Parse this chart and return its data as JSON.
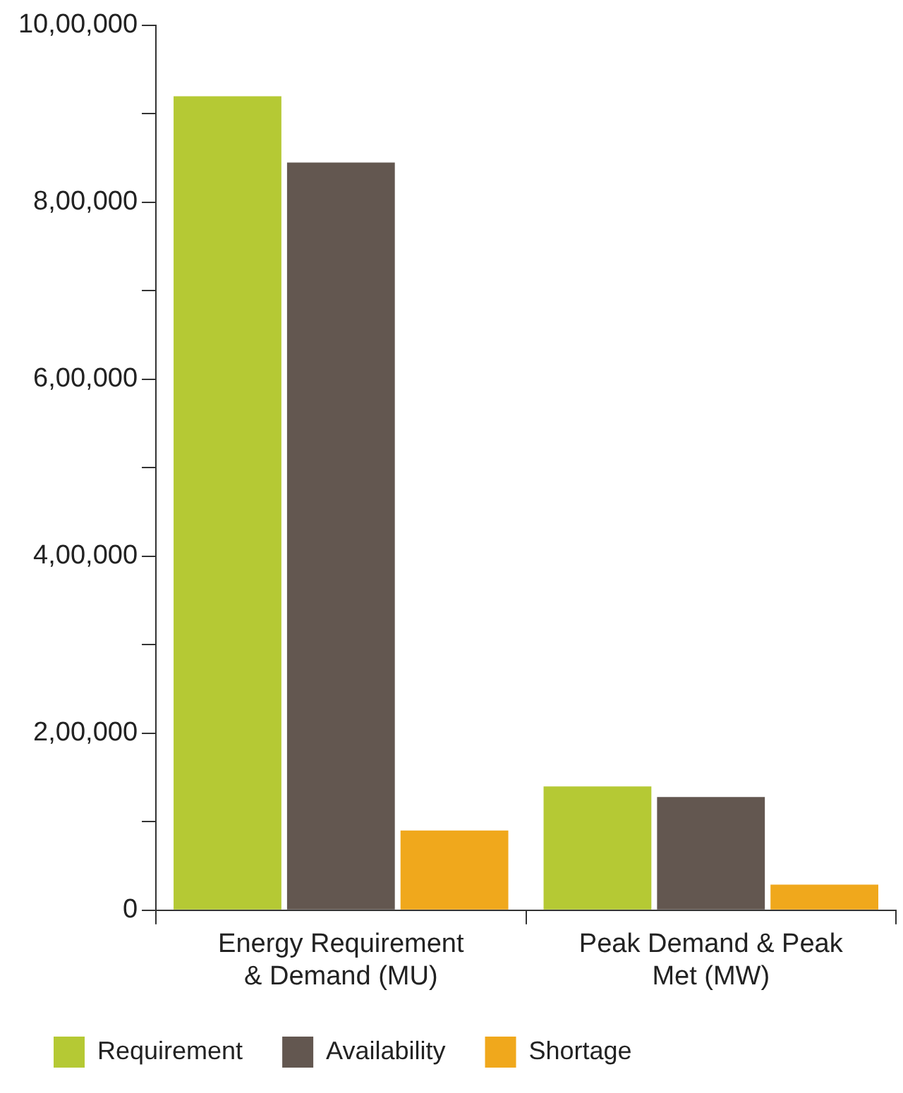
{
  "chart_data": {
    "type": "bar",
    "categories": [
      "Energy Requirement & Demand (MU)",
      "Peak Demand & Peak Met (MW)"
    ],
    "series": [
      {
        "name": "Requirement",
        "color": "#b5c934",
        "values": [
          920000,
          140000
        ]
      },
      {
        "name": "Availability",
        "color": "#635750",
        "values": [
          845000,
          128000
        ]
      },
      {
        "name": "Shortage",
        "color": "#f0a81c",
        "values": [
          90000,
          29000
        ]
      }
    ],
    "ylim": [
      0,
      1000000
    ],
    "yticks": [
      {
        "value": 0,
        "label": "0"
      },
      {
        "value": 100000,
        "label": null
      },
      {
        "value": 200000,
        "label": "2,00,000"
      },
      {
        "value": 300000,
        "label": null
      },
      {
        "value": 400000,
        "label": "4,00,000"
      },
      {
        "value": 500000,
        "label": null
      },
      {
        "value": 600000,
        "label": "6,00,000"
      },
      {
        "value": 700000,
        "label": null
      },
      {
        "value": 800000,
        "label": "8,00,000"
      },
      {
        "value": 900000,
        "label": null
      },
      {
        "value": 1000000,
        "label": "10,00,000"
      }
    ],
    "grid": false,
    "legend": "bottom left"
  }
}
